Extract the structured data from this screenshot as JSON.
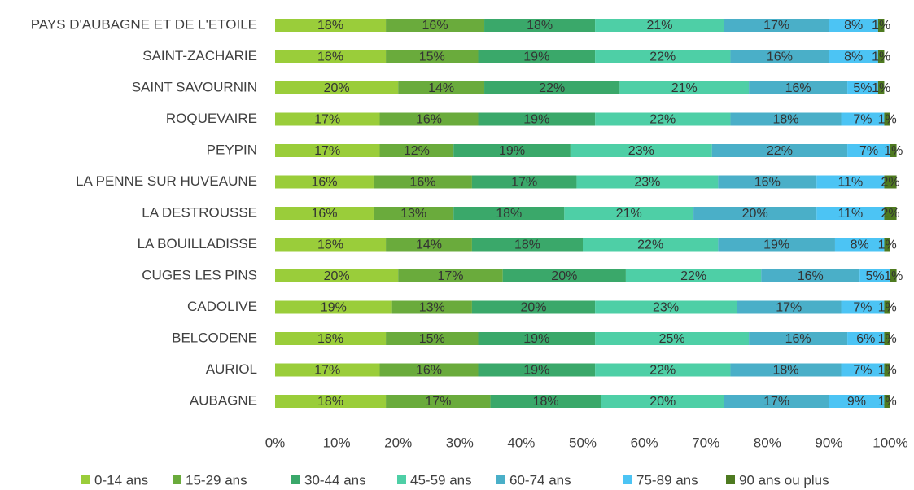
{
  "chart_data": {
    "type": "bar",
    "orientation": "horizontal",
    "stacked": true,
    "categories": [
      "PAYS D'AUBAGNE ET DE L'ETOILE",
      "SAINT-ZACHARIE",
      "SAINT SAVOURNIN",
      "ROQUEVAIRE",
      "PEYPIN",
      "LA PENNE SUR HUVEAUNE",
      "LA DESTROUSSE",
      "LA BOUILLADISSE",
      "CUGES LES PINS",
      "CADOLIVE",
      "BELCODENE",
      "AURIOL",
      "AUBAGNE"
    ],
    "series": [
      {
        "name": "0-14 ans",
        "color": "#9acd3a",
        "values": [
          18,
          18,
          20,
          17,
          17,
          16,
          16,
          18,
          20,
          19,
          18,
          17,
          18
        ],
        "value_labels": [
          "18%",
          "18%",
          "20%",
          "17%",
          "17%",
          "16%",
          "16%",
          "18%",
          "20%",
          "19%",
          "18%",
          "17%",
          "18%"
        ]
      },
      {
        "name": "15-29 ans",
        "color": "#6aab3c",
        "values": [
          16,
          15,
          14,
          16,
          12,
          16,
          13,
          14,
          17,
          13,
          15,
          16,
          17
        ],
        "value_labels": [
          "16%",
          "15%",
          "14%",
          "16%",
          "12%",
          "16%",
          "13%",
          "14%",
          "17%",
          "13%",
          "15%",
          "16%",
          "17%"
        ]
      },
      {
        "name": "30-44 ans",
        "color": "#3aa86a",
        "values": [
          18,
          19,
          22,
          19,
          19,
          17,
          18,
          18,
          20,
          20,
          19,
          19,
          18
        ],
        "value_labels": [
          "18%",
          "19%",
          "22%",
          "19%",
          "19%",
          "17%",
          "18%",
          "18%",
          "20%",
          "20%",
          "19%",
          "19%",
          "18%"
        ]
      },
      {
        "name": "45-59 ans",
        "color": "#4ecfa6",
        "values": [
          21,
          22,
          21,
          22,
          23,
          23,
          21,
          22,
          22,
          23,
          25,
          22,
          20
        ],
        "value_labels": [
          "21%",
          "22%",
          "21%",
          "22%",
          "23%",
          "23%",
          "21%",
          "22%",
          "22%",
          "23%",
          "25%",
          "22%",
          "20%"
        ]
      },
      {
        "name": "60-74 ans",
        "color": "#4aafc8",
        "values": [
          17,
          16,
          16,
          18,
          22,
          16,
          20,
          19,
          16,
          17,
          16,
          18,
          17
        ],
        "value_labels": [
          "17%",
          "16%",
          "16%",
          "18%",
          "22%",
          "16%",
          "20%",
          "19%",
          "16%",
          "17%",
          "16%",
          "18%",
          "17%"
        ]
      },
      {
        "name": "75-89 ans",
        "color": "#4cc4f4",
        "values": [
          8,
          8,
          5,
          7,
          7,
          11,
          11,
          8,
          5,
          7,
          6,
          7,
          9
        ],
        "value_labels": [
          "8%",
          "8%",
          "5%",
          "7%",
          "7%",
          "11%",
          "11%",
          "8%",
          "5%",
          "7%",
          "6%",
          "7%",
          "9%"
        ]
      },
      {
        "name": "90 ans ou plus",
        "color": "#4e7a20",
        "values": [
          1,
          1,
          1,
          1,
          1,
          2,
          2,
          1,
          1,
          1,
          1,
          1,
          1
        ],
        "value_labels": [
          "1%",
          "1%",
          "1%",
          "1%",
          "1%",
          "2%",
          "2%",
          "1%",
          "1%",
          "1%",
          "1%",
          "1%",
          "1%"
        ]
      }
    ],
    "xlim": [
      0,
      100
    ],
    "xticks": [
      {
        "value": 0,
        "label": "0%"
      },
      {
        "value": 10,
        "label": "10%"
      },
      {
        "value": 20,
        "label": "20%"
      },
      {
        "value": 30,
        "label": "30%"
      },
      {
        "value": 40,
        "label": "40%"
      },
      {
        "value": 50,
        "label": "50%"
      },
      {
        "value": 60,
        "label": "60%"
      },
      {
        "value": 70,
        "label": "70%"
      },
      {
        "value": 80,
        "label": "80%"
      },
      {
        "value": 90,
        "label": "90%"
      },
      {
        "value": 100,
        "label": "100%"
      }
    ],
    "legend": "bottom"
  }
}
